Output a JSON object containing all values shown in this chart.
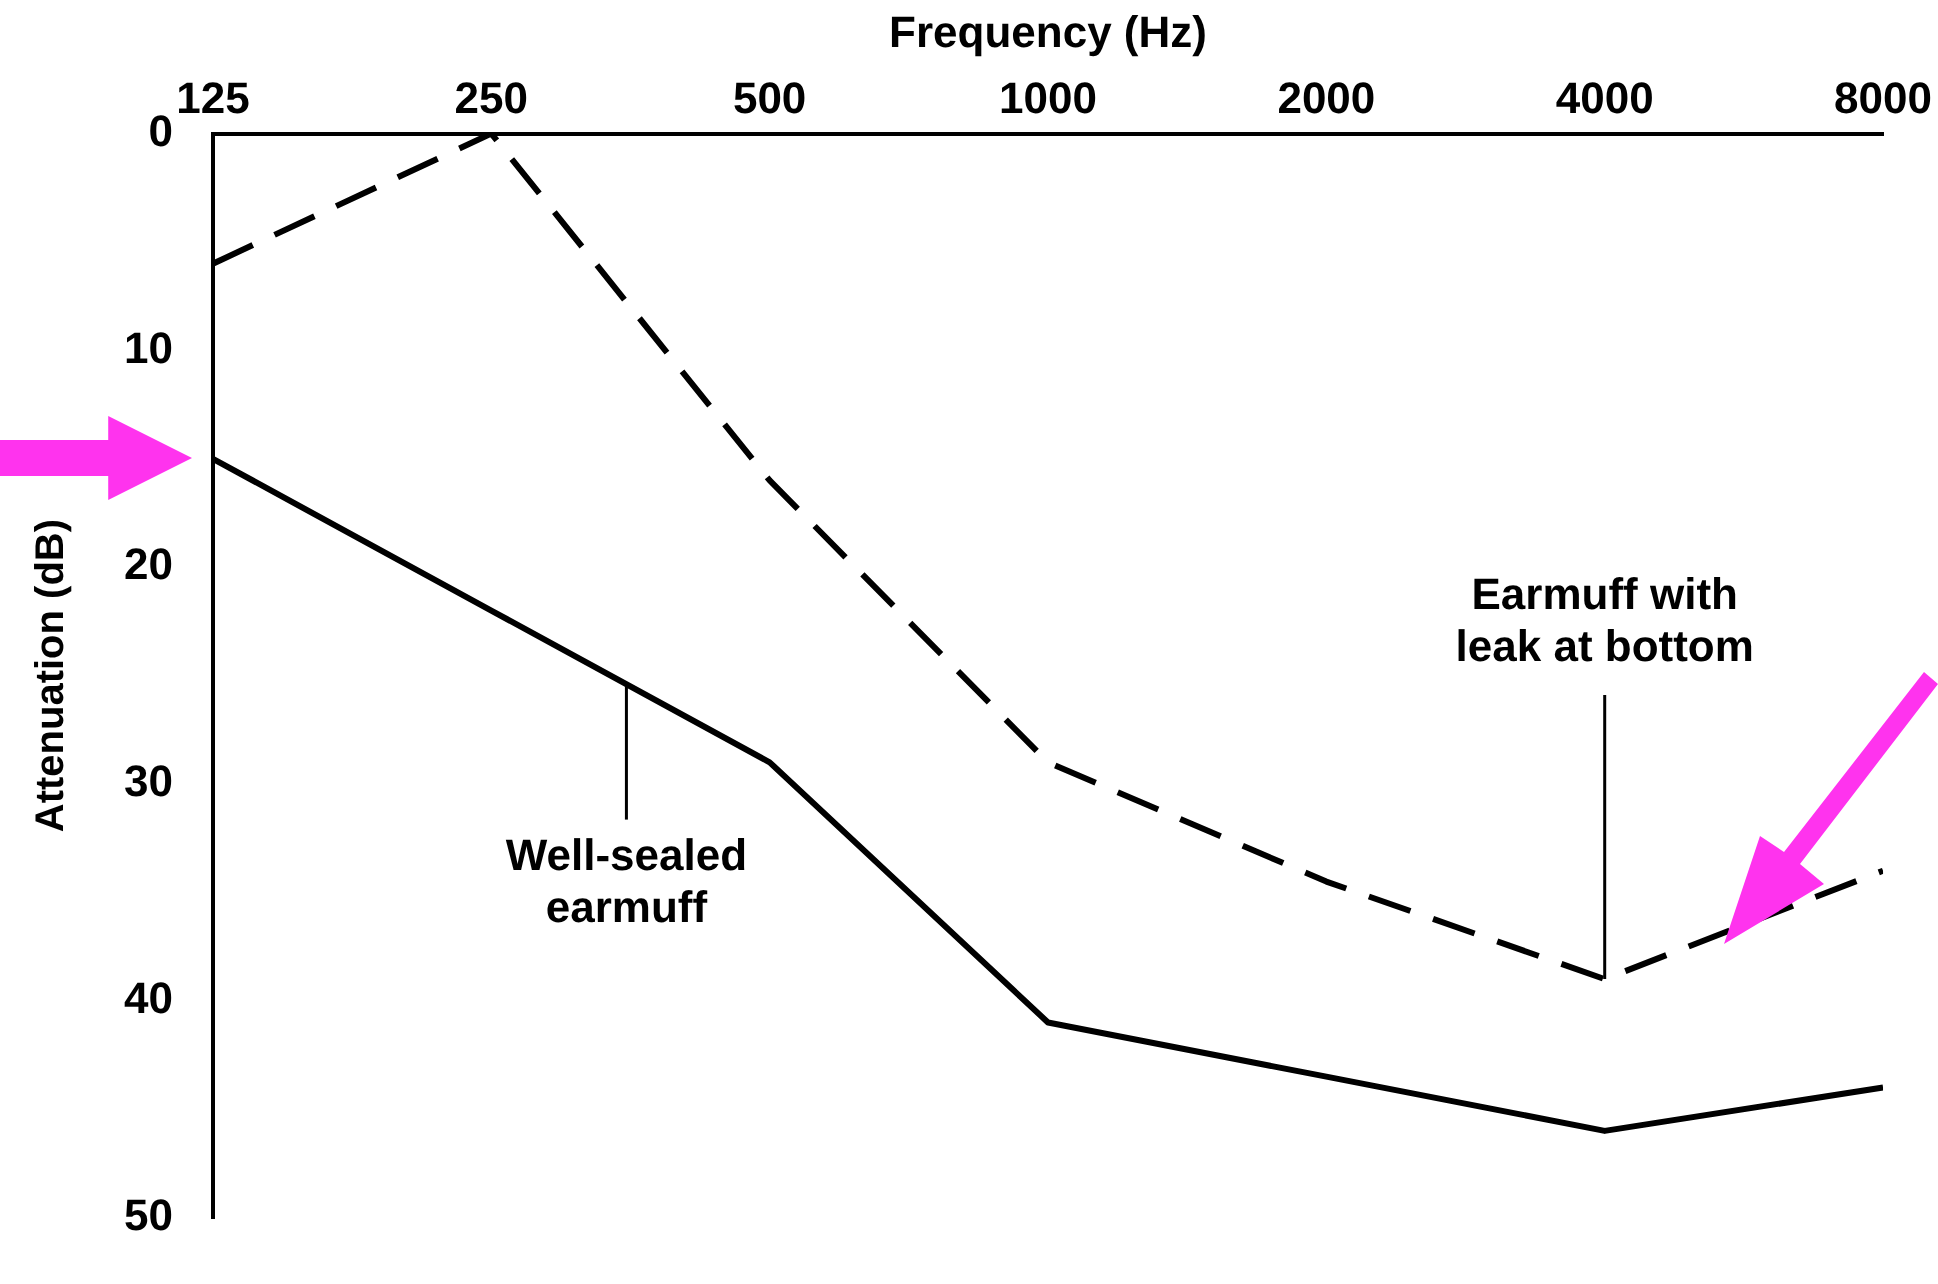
{
  "chart_data": {
    "type": "line",
    "xlabel": "Frequency (Hz)",
    "ylabel": "Attenuation (dB)",
    "x": [
      125,
      250,
      500,
      1000,
      2000,
      4000,
      8000
    ],
    "series": [
      {
        "color": "#000000",
        "line_style": "solid",
        "values": [
          15,
          22,
          29,
          41,
          43.5,
          46,
          44
        ]
      },
      {
        "color": "#000000",
        "line_style": "dashed",
        "values": [
          6,
          0,
          16,
          29,
          34.5,
          39,
          34
        ]
      }
    ],
    "xlim": [
      125,
      8000
    ],
    "xticks": [
      125,
      250,
      500,
      1000,
      2000,
      4000,
      8000
    ],
    "ylim": [
      50,
      0
    ],
    "yticks": [
      0,
      10,
      20,
      30,
      40,
      50
    ],
    "log": "x",
    "grid": false,
    "legend": false,
    "marker": "none",
    "annotations": [
      {
        "text": "Earmuff with leak at bottom",
        "x": 4000,
        "y": 39
      },
      {
        "text": "Well-sealed earmuff",
        "x": 350,
        "y": 25
      }
    ]
  }
}
